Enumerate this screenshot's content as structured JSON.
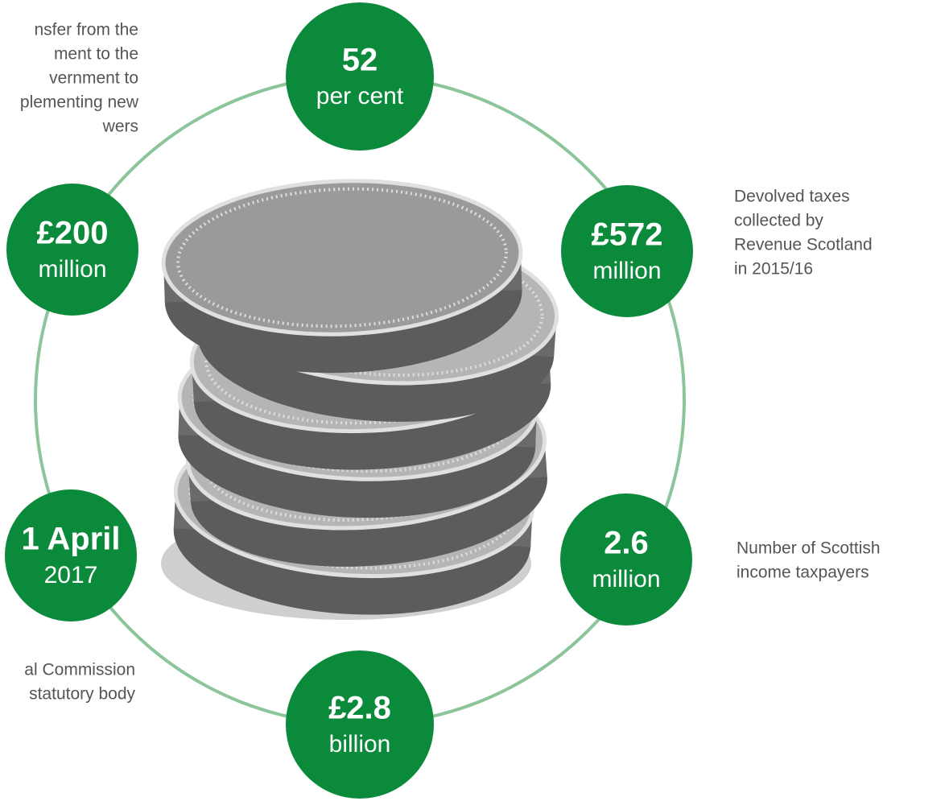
{
  "nodes": [
    {
      "value": "52",
      "unit": "per cent"
    },
    {
      "value": "£572",
      "unit": "million"
    },
    {
      "value": "2.6",
      "unit": "million"
    },
    {
      "value": "£2.8",
      "unit": "billion"
    },
    {
      "value": "1 April",
      "unit": "2017"
    },
    {
      "value": "£200",
      "unit": "million"
    }
  ],
  "annotations": [
    {
      "lines": [
        "nsfer from the",
        "ment to the",
        "vernment to",
        "plementing new",
        "wers"
      ]
    },
    {
      "lines": [
        "Devolved taxes",
        "collected by",
        "Revenue Scotland",
        "in 2015/16"
      ]
    },
    {
      "lines": [
        "Number of Scottish",
        "income taxpayers"
      ]
    },
    {
      "lines": [
        "al Commission",
        "statutory body"
      ]
    }
  ]
}
